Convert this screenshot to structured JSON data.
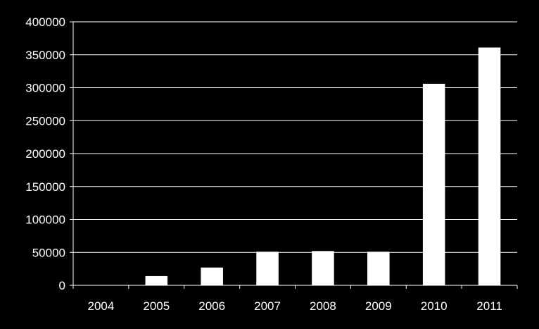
{
  "chart_data": {
    "type": "bar",
    "categories": [
      "2004",
      "2005",
      "2006",
      "2007",
      "2008",
      "2009",
      "2010",
      "2011"
    ],
    "values": [
      0,
      14000,
      27000,
      51000,
      52000,
      51000,
      306000,
      361000
    ],
    "ylim": [
      0,
      400000
    ],
    "yticks": [
      "0",
      "50000",
      "100000",
      "150000",
      "200000",
      "250000",
      "300000",
      "350000",
      "400000"
    ],
    "grid": true,
    "legend": "none",
    "colors": {
      "background": "#000000",
      "bar": "#ffffff",
      "grid": "#ffffff",
      "text": "#ffffff"
    }
  }
}
